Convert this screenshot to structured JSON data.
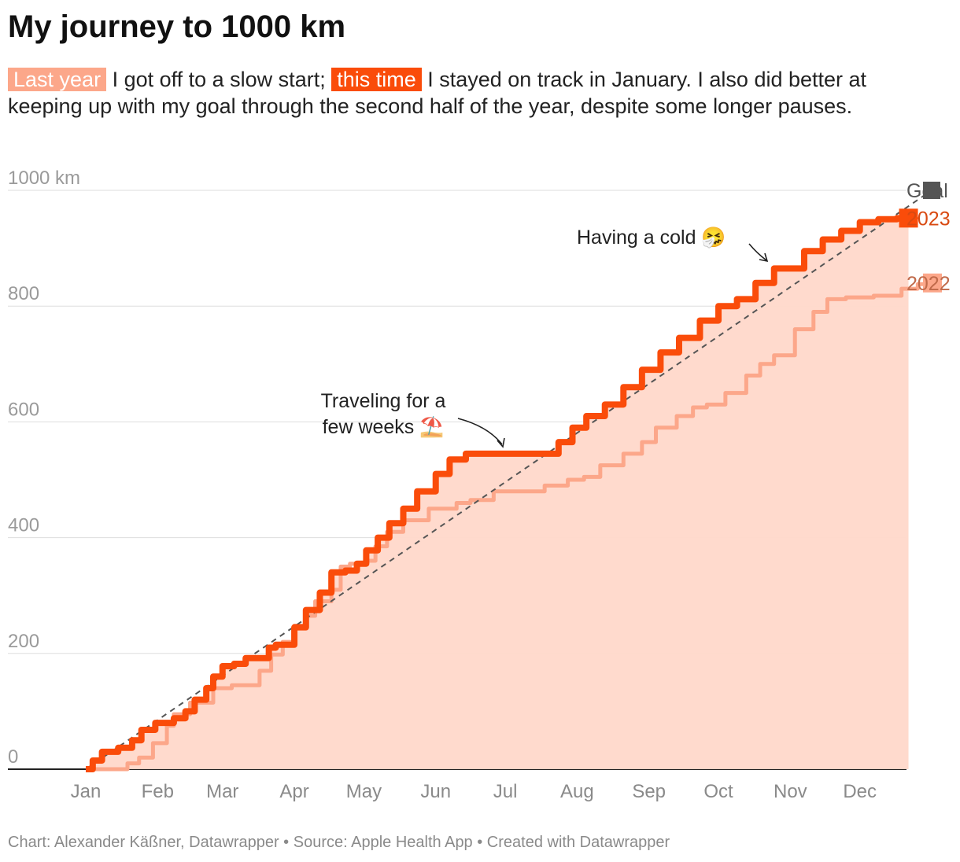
{
  "header": {
    "title": "My journey to 1000 km",
    "subtitle": {
      "tag_last_year": "Last year",
      "text_1": " I got off to a slow start; ",
      "tag_this_time": "this time",
      "text_2": " I stayed on track in January. I also did better at keeping up with my goal through the second half of the year, despite some longer pauses."
    }
  },
  "footer": {
    "text": "Chart: Alexander Käßner, Datawrapper • Source: Apple Health App • Created with Datawrapper"
  },
  "colors": {
    "goal": "#555555",
    "series_2023": "#fa4c0a",
    "series_2022": "#fca78a",
    "area_2022": "#ffd8ca",
    "grid": "#dddddd",
    "axis_text": "#9a9a9a"
  },
  "chart_data": {
    "type": "line",
    "ylabel": "",
    "y_unit_label": "1000 km",
    "ylim": [
      0,
      1000
    ],
    "yticks": [
      0,
      200,
      400,
      600,
      800
    ],
    "xlim": [
      0,
      365
    ],
    "month_ticks": [
      {
        "label": "Jan",
        "day": 0
      },
      {
        "label": "Feb",
        "day": 31
      },
      {
        "label": "Mar",
        "day": 59
      },
      {
        "label": "Apr",
        "day": 90
      },
      {
        "label": "May",
        "day": 120
      },
      {
        "label": "Jun",
        "day": 151
      },
      {
        "label": "Jul",
        "day": 181
      },
      {
        "label": "Aug",
        "day": 212
      },
      {
        "label": "Sep",
        "day": 243
      },
      {
        "label": "Oct",
        "day": 273
      },
      {
        "label": "Nov",
        "day": 304
      },
      {
        "label": "Dec",
        "day": 334
      }
    ],
    "grid": true,
    "legend": "right, at line ends",
    "series": [
      {
        "name": "Goal",
        "style": "dashed",
        "x": [
          0,
          365
        ],
        "y": [
          0,
          1000
        ]
      },
      {
        "name": "2023",
        "style": "solid-thick",
        "end_marker": true,
        "x": [
          0,
          3,
          7,
          14,
          20,
          24,
          30,
          38,
          43,
          47,
          52,
          55,
          59,
          64,
          69,
          79,
          82,
          90,
          95,
          101,
          106,
          112,
          117,
          121,
          126,
          131,
          137,
          143,
          151,
          157,
          164,
          170,
          175,
          181,
          198,
          204,
          210,
          216,
          224,
          232,
          240,
          248,
          256,
          265,
          273,
          281,
          289,
          297,
          304,
          310,
          318,
          326,
          334,
          342,
          350,
          355
        ],
        "y": [
          0,
          15,
          30,
          37,
          50,
          68,
          80,
          88,
          100,
          120,
          140,
          160,
          178,
          182,
          192,
          210,
          215,
          245,
          275,
          305,
          340,
          343,
          355,
          378,
          400,
          425,
          450,
          480,
          510,
          535,
          545,
          545,
          545,
          545,
          545,
          565,
          590,
          610,
          630,
          660,
          690,
          720,
          745,
          775,
          800,
          812,
          840,
          865,
          865,
          895,
          915,
          930,
          945,
          950,
          952,
          952
        ]
      },
      {
        "name": "2022",
        "style": "solid",
        "filled_area": true,
        "end_marker": true,
        "x": [
          0,
          18,
          23,
          29,
          35,
          38,
          45,
          55,
          63,
          72,
          75,
          80,
          85,
          90,
          95,
          99,
          106,
          110,
          114,
          121,
          125,
          130,
          137,
          142,
          148,
          157,
          160,
          166,
          176,
          188,
          198,
          208,
          215,
          222,
          232,
          240,
          246,
          255,
          262,
          268,
          276,
          285,
          291,
          297,
          306,
          314,
          320,
          328,
          340,
          352,
          359,
          365
        ],
        "y": [
          0,
          10,
          20,
          45,
          75,
          95,
          115,
          140,
          145,
          145,
          170,
          198,
          220,
          248,
          265,
          290,
          310,
          350,
          355,
          360,
          385,
          410,
          430,
          430,
          450,
          450,
          460,
          465,
          480,
          480,
          490,
          500,
          505,
          525,
          545,
          565,
          590,
          610,
          625,
          630,
          650,
          680,
          700,
          715,
          760,
          790,
          812,
          815,
          818,
          830,
          838,
          840
        ]
      }
    ],
    "annotations": [
      {
        "text_lines": [
          "Traveling for a",
          "few weeks ⛱️"
        ],
        "target_x": 172,
        "target_y": 545
      },
      {
        "text_lines": [
          "Having a cold 🤧"
        ],
        "target_x": 298,
        "target_y": 862
      }
    ]
  }
}
